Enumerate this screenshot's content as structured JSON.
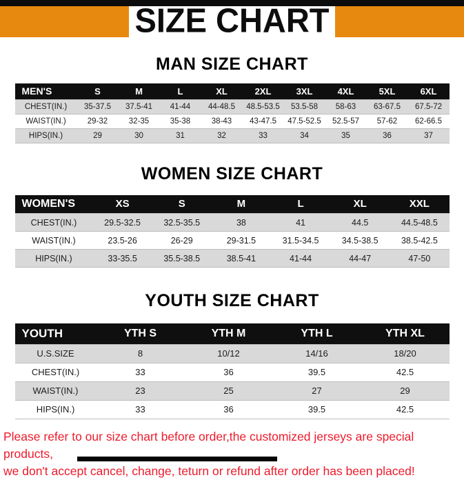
{
  "banner": {
    "title": "SIZE CHART"
  },
  "colors": {
    "accent_orange": "#e8890f",
    "header_black": "#0f0f0f",
    "stripe_gray": "#d9d9d9",
    "footer_red": "#ed1b2c"
  },
  "chart_data": [
    {
      "type": "table",
      "title": "MAN SIZE CHART",
      "columns": [
        "MEN'S",
        "S",
        "M",
        "L",
        "XL",
        "2XL",
        "3XL",
        "4XL",
        "5XL",
        "6XL"
      ],
      "rows": [
        [
          "CHEST(IN.)",
          "35-37.5",
          "37.5-41",
          "41-44",
          "44-48.5",
          "48.5-53.5",
          "53.5-58",
          "58-63",
          "63-67.5",
          "67.5-72"
        ],
        [
          "WAIST(IN.)",
          "29-32",
          "32-35",
          "35-38",
          "38-43",
          "43-47.5",
          "47.5-52.5",
          "52.5-57",
          "57-62",
          "62-66.5"
        ],
        [
          "HIPS(IN.)",
          "29",
          "30",
          "31",
          "32",
          "33",
          "34",
          "35",
          "36",
          "37"
        ]
      ]
    },
    {
      "type": "table",
      "title": "WOMEN SIZE CHART",
      "columns": [
        "WOMEN'S",
        "XS",
        "S",
        "M",
        "L",
        "XL",
        "XXL"
      ],
      "rows": [
        [
          "CHEST(IN.)",
          "29.5-32.5",
          "32.5-35.5",
          "38",
          "41",
          "44.5",
          "44.5-48.5"
        ],
        [
          "WAIST(IN.)",
          "23.5-26",
          "26-29",
          "29-31.5",
          "31.5-34.5",
          "34.5-38.5",
          "38.5-42.5"
        ],
        [
          "HIPS(IN.)",
          "33-35.5",
          "35.5-38.5",
          "38.5-41",
          "41-44",
          "44-47",
          "47-50"
        ]
      ]
    },
    {
      "type": "table",
      "title": "YOUTH SIZE CHART",
      "columns": [
        "YOUTH",
        "YTH S",
        "YTH M",
        "YTH L",
        "YTH XL"
      ],
      "rows": [
        [
          "U.S.SIZE",
          "8",
          "10/12",
          "14/16",
          "18/20"
        ],
        [
          "CHEST(IN.)",
          "33",
          "36",
          "39.5",
          "42.5"
        ],
        [
          "WAIST(IN.)",
          "23",
          "25",
          "27",
          "29"
        ],
        [
          "HIPS(IN.)",
          "33",
          "36",
          "39.5",
          "42.5"
        ]
      ]
    }
  ],
  "footer": {
    "lines": [
      "Please refer to our size chart before order,the customized jerseys are special products,",
      "we don't accept cancel, change, teturn or refund after order has been placed!"
    ]
  }
}
